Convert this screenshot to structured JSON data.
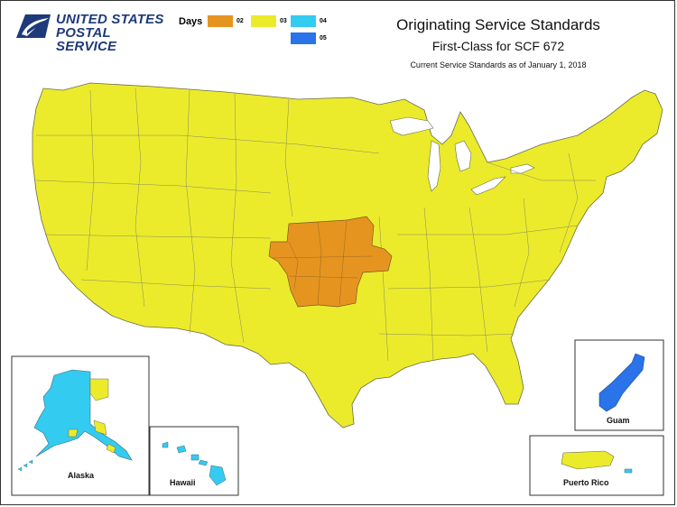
{
  "header": {
    "logo_line1": "UNITED STATES",
    "logo_line2": "POSTAL SERVICE",
    "title": "Originating Service Standards",
    "subtitle": "First-Class for SCF 672",
    "note": "Current Service Standards as of January 1, 2018"
  },
  "legend": {
    "title": "Days",
    "items": [
      {
        "label": "02",
        "color": "#e69420"
      },
      {
        "label": "03",
        "color": "#ebeb2c"
      },
      {
        "label": "04",
        "color": "#33ccf0"
      },
      {
        "label": "05",
        "color": "#2a73e8"
      }
    ]
  },
  "colors": {
    "day02": "#e69420",
    "day03": "#ebeb2c",
    "day04": "#33ccf0",
    "day05": "#2a73e8",
    "border": "#6b6b4a"
  },
  "insets": {
    "alaska": "Alaska",
    "hawaii": "Hawaii",
    "guam": "Guam",
    "puerto_rico": "Puerto Rico"
  }
}
